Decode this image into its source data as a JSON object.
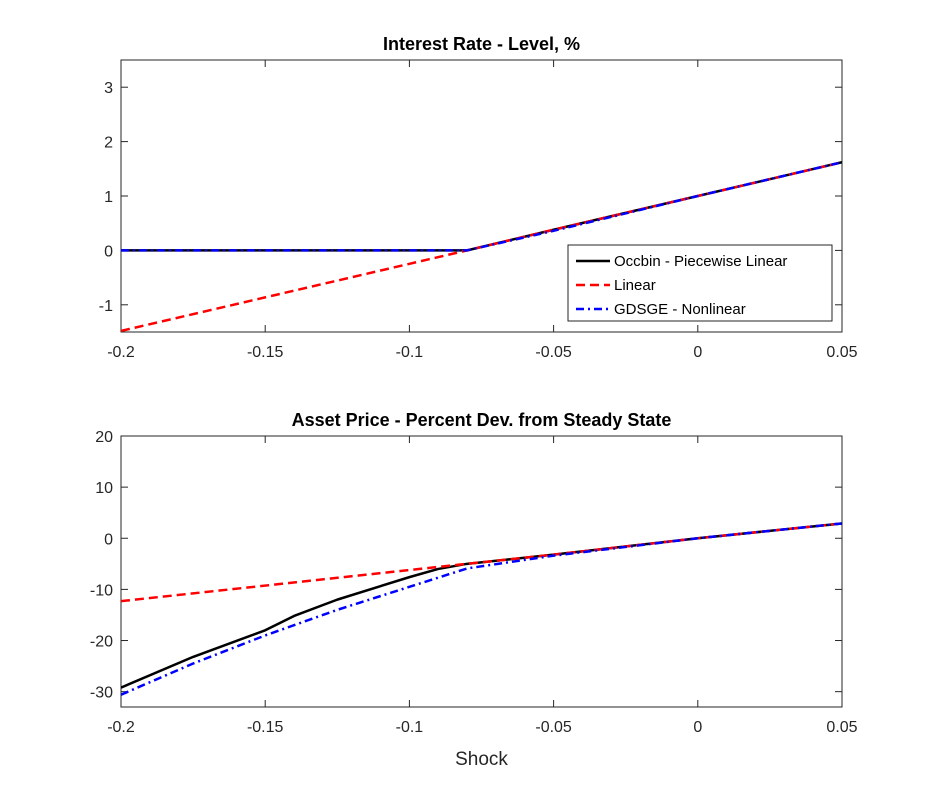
{
  "chart_data": [
    {
      "type": "line",
      "title": "Interest Rate - Level, %",
      "xlabel": "",
      "ylabel": "",
      "xlim": [
        -0.2,
        0.05
      ],
      "ylim": [
        -1.5,
        3.5
      ],
      "xticks": [
        -0.2,
        -0.15,
        -0.1,
        -0.05,
        0,
        0.05
      ],
      "xtick_labels": [
        "-0.2",
        "-0.15",
        "-0.1",
        "-0.05",
        "0",
        "0.05"
      ],
      "yticks": [
        -1,
        0,
        1,
        2,
        3
      ],
      "ytick_labels": [
        "-1",
        "0",
        "1",
        "2",
        "3"
      ],
      "grid": false,
      "legend": "bottom-right",
      "series": [
        {
          "name": "Occbin - Piecewise Linear",
          "color": "#000000",
          "style": "solid",
          "x": [
            -0.2,
            -0.08,
            -0.05,
            0,
            0.05
          ],
          "y": [
            0,
            0,
            0.38,
            1.0,
            1.62
          ]
        },
        {
          "name": "Linear",
          "color": "#ff0000",
          "style": "dashed",
          "x": [
            -0.2,
            -0.08,
            -0.05,
            0,
            0.05
          ],
          "y": [
            -1.48,
            0,
            0.38,
            1.0,
            1.62
          ]
        },
        {
          "name": "GDSGE - Nonlinear",
          "color": "#0000ff",
          "style": "dashdot",
          "x": [
            -0.2,
            -0.08,
            -0.05,
            0,
            0.05
          ],
          "y": [
            0,
            0,
            0.36,
            1.0,
            1.62
          ]
        }
      ]
    },
    {
      "type": "line",
      "title": "Asset Price - Percent Dev. from Steady State",
      "xlabel": "Shock",
      "ylabel": "",
      "xlim": [
        -0.2,
        0.05
      ],
      "ylim": [
        -33,
        20
      ],
      "xticks": [
        -0.2,
        -0.15,
        -0.1,
        -0.05,
        0,
        0.05
      ],
      "xtick_labels": [
        "-0.2",
        "-0.15",
        "-0.1",
        "-0.05",
        "0",
        "0.05"
      ],
      "yticks": [
        -30,
        -20,
        -10,
        0,
        10,
        20
      ],
      "ytick_labels": [
        "-30",
        "-20",
        "-10",
        "0",
        "10",
        "20"
      ],
      "grid": false,
      "legend": "none",
      "series": [
        {
          "name": "Occbin - Piecewise Linear",
          "color": "#000000",
          "style": "solid",
          "x": [
            -0.2,
            -0.175,
            -0.15,
            -0.14,
            -0.125,
            -0.1,
            -0.09,
            -0.08,
            -0.05,
            0,
            0.05
          ],
          "y": [
            -29.2,
            -23.2,
            -18.0,
            -15.2,
            -12.0,
            -7.6,
            -6.0,
            -5.0,
            -3.2,
            0,
            2.9
          ]
        },
        {
          "name": "Linear",
          "color": "#ff0000",
          "style": "dashed",
          "x": [
            -0.2,
            -0.08,
            -0.05,
            0,
            0.05
          ],
          "y": [
            -12.3,
            -5.0,
            -3.2,
            0,
            2.9
          ]
        },
        {
          "name": "GDSGE - Nonlinear",
          "color": "#0000ff",
          "style": "dashdot",
          "x": [
            -0.2,
            -0.175,
            -0.15,
            -0.125,
            -0.1,
            -0.08,
            -0.05,
            0,
            0.05
          ],
          "y": [
            -30.6,
            -24.5,
            -19.0,
            -14.0,
            -9.5,
            -5.9,
            -3.4,
            0,
            2.9
          ]
        }
      ]
    }
  ]
}
